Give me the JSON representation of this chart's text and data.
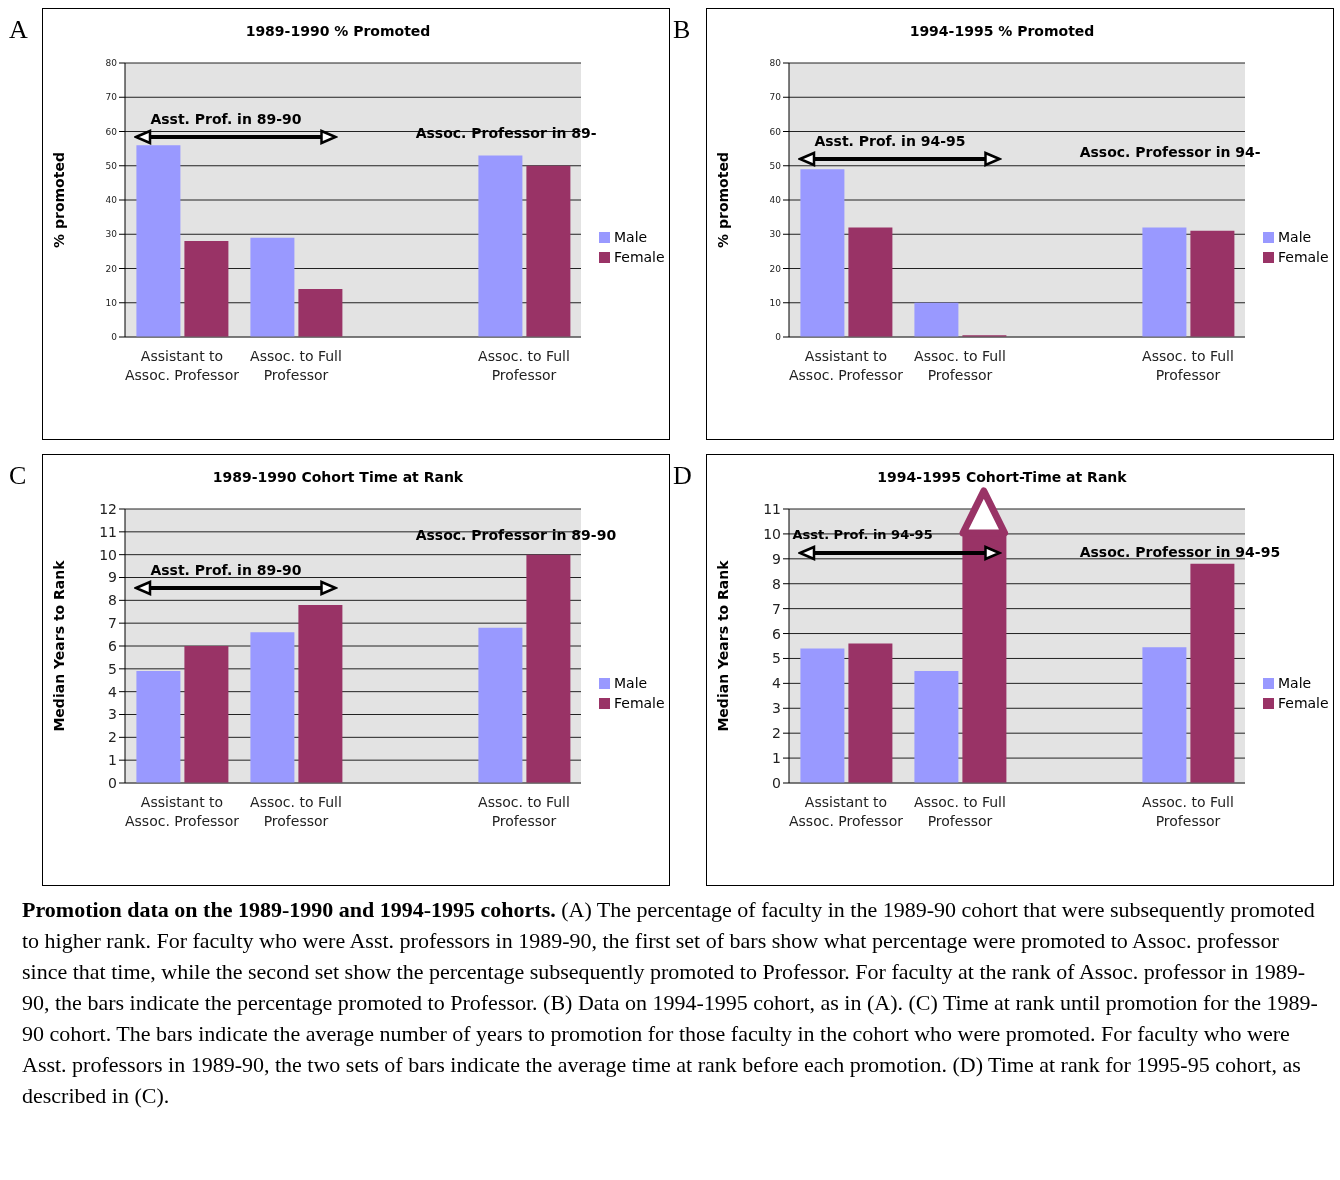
{
  "chart_data": [
    {
      "type": "bar",
      "title": "1989-1990 % Promoted",
      "ylabel": "% promoted",
      "categories": [
        "Assistant to Assoc. Professor",
        "Assoc. to Full Professor",
        null,
        "Assoc. to Full Professor"
      ],
      "series": [
        {
          "name": "Male",
          "color": "#9999ff",
          "values": [
            56,
            29,
            null,
            53
          ]
        },
        {
          "name": "Female",
          "color": "#993366",
          "values": [
            28,
            14,
            null,
            50
          ]
        }
      ],
      "ylim": [
        0,
        80
      ],
      "yticks": [
        0,
        10,
        20,
        30,
        40,
        50,
        60,
        70,
        80
      ],
      "grid": "y",
      "legend": "right",
      "annotations": [
        "A",
        "Asst. Prof. in 89-90",
        "Assoc. Professor in 89-"
      ]
    },
    {
      "type": "bar",
      "title": "1994-1995 % Promoted",
      "ylabel": "% promoted",
      "categories": [
        "Assistant to Assoc. Professor",
        "Assoc. to Full Professor",
        null,
        "Assoc. to Full Professor"
      ],
      "series": [
        {
          "name": "Male",
          "color": "#9999ff",
          "values": [
            49,
            10,
            null,
            32
          ]
        },
        {
          "name": "Female",
          "color": "#993366",
          "values": [
            32,
            0.5,
            null,
            31
          ]
        }
      ],
      "ylim": [
        0,
        80
      ],
      "yticks": [
        0,
        10,
        20,
        30,
        40,
        50,
        60,
        70,
        80
      ],
      "grid": "y",
      "legend": "right",
      "annotations": [
        "B",
        "Asst. Prof. in 94-95",
        "Assoc. Professor in 94-"
      ]
    },
    {
      "type": "bar",
      "title": "1989-1990 Cohort Time at Rank",
      "ylabel": "Median Years to Rank",
      "categories": [
        "Assistant to Assoc. Professor",
        "Assoc. to Full Professor",
        null,
        "Assoc. to Full Professor"
      ],
      "series": [
        {
          "name": "Male",
          "color": "#9999ff",
          "values": [
            4.9,
            6.6,
            null,
            6.8
          ]
        },
        {
          "name": "Female",
          "color": "#993366",
          "values": [
            6,
            7.8,
            null,
            10
          ]
        }
      ],
      "ylim": [
        0,
        12
      ],
      "yticks": [
        0,
        1,
        2,
        3,
        4,
        5,
        6,
        7,
        8,
        9,
        10,
        11,
        12
      ],
      "grid": "y",
      "legend": "right",
      "annotations": [
        "C",
        "Asst. Prof. in 89-90",
        "Assoc. Professor in 89-90"
      ]
    },
    {
      "type": "bar",
      "title": "1994-1995 Cohort-Time at Rank",
      "ylabel": "Median Years to Rank",
      "categories": [
        "Assistant to Assoc. Professor",
        "Assoc. to Full Professor",
        null,
        "Assoc. to Full Professor"
      ],
      "series": [
        {
          "name": "Male",
          "color": "#9999ff",
          "values": [
            5.4,
            4.5,
            null,
            5.45
          ]
        },
        {
          "name": "Female",
          "color": "#993366",
          "values": [
            5.6,
            10,
            null,
            8.8
          ]
        }
      ],
      "ylim": [
        0,
        11
      ],
      "yticks": [
        0,
        1,
        2,
        3,
        4,
        5,
        6,
        7,
        8,
        9,
        10,
        11
      ],
      "grid": "y",
      "legend": "right",
      "annotations": [
        "D",
        "Asst. Prof. in 94-95",
        "Assoc. Professor in 94-95",
        "Promotion data on the 1989-1990 and 1994-1995 cohorts.",
        "(A) The percentage of faculty in the 1989-90  cohort that were subsequently promoted to higher rank. For faculty who were Asst. professors in 1989-90, the first set of bars show what percentage were promoted to Assoc. professor since that time, while the second set show the percentage subsequently promoted to Professor. For faculty at the rank of Assoc. professor in 1989-90, the bars indicate the percentage promoted to Professor. (B) Data on 1994-1995 cohort, as in (A). (C)  Time at rank until promotion for the 1989-90 cohort. The bars indicate the average number of years to promotion for those faculty in the cohort who were promoted. For faculty who were Asst. professors in 1989-90, the two sets of bars indicate the average time at rank before each promotion. (D) Time at rank for 1995-95 cohort, as described in (C)."
      ]
    }
  ]
}
